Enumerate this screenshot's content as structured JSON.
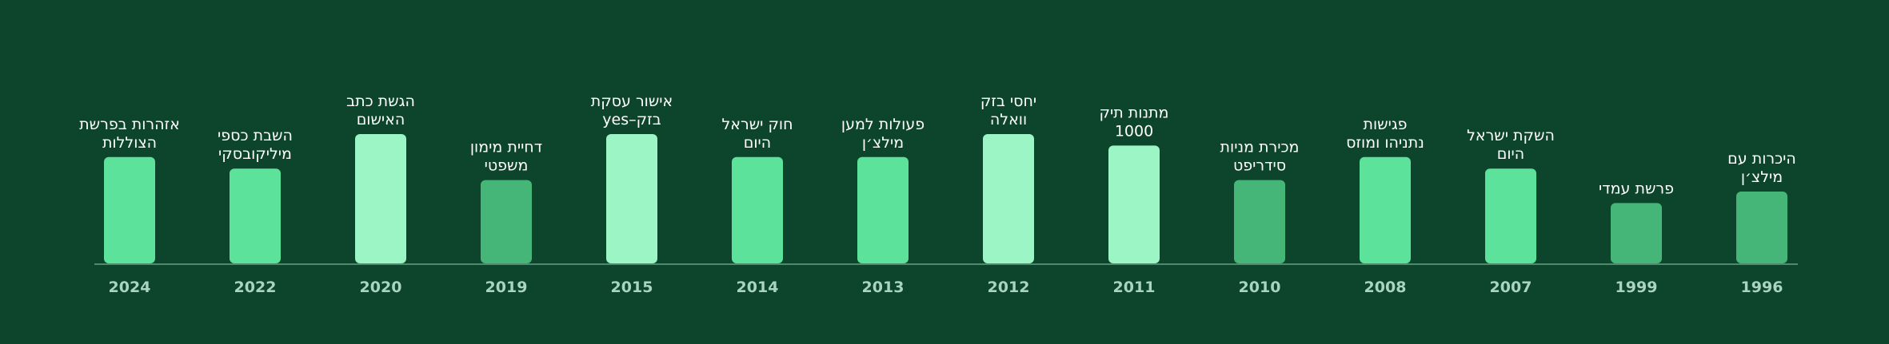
{
  "chart_data": {
    "type": "bar",
    "title": "",
    "xlabel": "",
    "ylabel": "",
    "grid": false,
    "legend": "none",
    "colors": {
      "background": "#0d452c",
      "baseline": "#4f8a6c",
      "bar_dark": "#45b578",
      "bar_mid": "#5de29b",
      "bar_light": "#9cf5c4",
      "year_text": "#a9d4bd",
      "label_text": "#ffffff"
    },
    "items": [
      {
        "year": "2024",
        "label": [
          "אזהרות בפרשת",
          "הצוללות"
        ],
        "value": 3.7,
        "shade": "mid"
      },
      {
        "year": "2022",
        "label": [
          "השבת כספי",
          "מיליקובסקי"
        ],
        "value": 3.3,
        "shade": "mid"
      },
      {
        "year": "2020",
        "label": [
          "הגשת כתב",
          "האישום"
        ],
        "value": 4.5,
        "shade": "light"
      },
      {
        "year": "2019",
        "label": [
          "דחיית מימון",
          "משפטי"
        ],
        "value": 2.9,
        "shade": "dark"
      },
      {
        "year": "2015",
        "label": [
          "אישור עסקת",
          "בזק–yes"
        ],
        "value": 4.5,
        "shade": "light"
      },
      {
        "year": "2014",
        "label": [
          "חוק ישראל",
          "היום"
        ],
        "value": 3.7,
        "shade": "mid"
      },
      {
        "year": "2013",
        "label": [
          "פעולות למען",
          "מילצ׳ן"
        ],
        "value": 3.7,
        "shade": "mid"
      },
      {
        "year": "2012",
        "label": [
          "יחסי בזק",
          "וואלה"
        ],
        "value": 4.5,
        "shade": "light"
      },
      {
        "year": "2011",
        "label": [
          "מתנות תיק",
          "1000"
        ],
        "value": 4.1,
        "shade": "light"
      },
      {
        "year": "2010",
        "label": [
          "מכירת מניות",
          "סידריפט"
        ],
        "value": 2.9,
        "shade": "dark"
      },
      {
        "year": "2008",
        "label": [
          "פגישות",
          "נתניהו ומוזס"
        ],
        "value": 3.7,
        "shade": "mid"
      },
      {
        "year": "2007",
        "label": [
          "השקת ישראל",
          "היום"
        ],
        "value": 3.3,
        "shade": "mid"
      },
      {
        "year": "1999",
        "label": [
          "פרשת עמדי"
        ],
        "value": 2.1,
        "shade": "dark"
      },
      {
        "year": "1996",
        "label": [
          "היכרות עם",
          "מילצ׳ן"
        ],
        "value": 2.5,
        "shade": "dark"
      }
    ]
  }
}
